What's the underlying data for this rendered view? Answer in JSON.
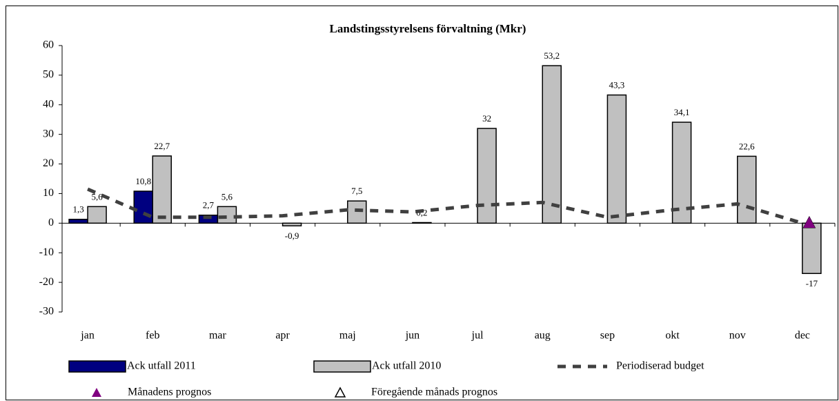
{
  "chart_data": {
    "type": "bar",
    "title": "Landstingsstyrelsens förvaltning (Mkr)",
    "categories": [
      "jan",
      "feb",
      "mar",
      "apr",
      "maj",
      "jun",
      "jul",
      "aug",
      "sep",
      "okt",
      "nov",
      "dec"
    ],
    "ylim": [
      -30,
      60
    ],
    "yticks": [
      60,
      50,
      40,
      30,
      20,
      10,
      0,
      -10,
      -20,
      -30
    ],
    "legend": "bottom",
    "series": [
      {
        "name": "Ack utfall 2011",
        "type": "bar",
        "color": "#000080",
        "values": [
          1.3,
          10.8,
          2.7,
          null,
          null,
          null,
          null,
          null,
          null,
          null,
          null,
          null
        ],
        "value_labels": [
          "1,3",
          "10,8",
          "2,7",
          null,
          null,
          null,
          null,
          null,
          null,
          null,
          null,
          null
        ]
      },
      {
        "name": "Ack utfall 2010",
        "type": "bar",
        "color": "#c0c0c0",
        "values": [
          5.6,
          22.7,
          5.6,
          -0.9,
          7.5,
          0.2,
          32,
          53.2,
          43.3,
          34.1,
          22.6,
          -17
        ],
        "value_labels": [
          "5,6",
          "22,7",
          "5,6",
          "-0,9",
          "7,5",
          "0,2",
          "32",
          "53,2",
          "43,3",
          "34,1",
          "22,6",
          "-17"
        ]
      },
      {
        "name": "Periodiserad budget",
        "type": "line",
        "color": "#404040",
        "values": [
          11.5,
          2,
          2,
          2.5,
          4.5,
          3.8,
          6,
          7,
          2,
          4.5,
          6.5,
          0
        ]
      },
      {
        "name": "Månadens prognos",
        "type": "marker",
        "color": "#800080",
        "values": [
          null,
          null,
          null,
          null,
          null,
          null,
          null,
          null,
          null,
          null,
          null,
          0
        ]
      },
      {
        "name": "Föregående månads prognos",
        "type": "marker-hollow",
        "color": "#000000",
        "values": [
          null,
          null,
          null,
          null,
          null,
          null,
          null,
          null,
          null,
          null,
          null,
          null
        ]
      }
    ]
  }
}
